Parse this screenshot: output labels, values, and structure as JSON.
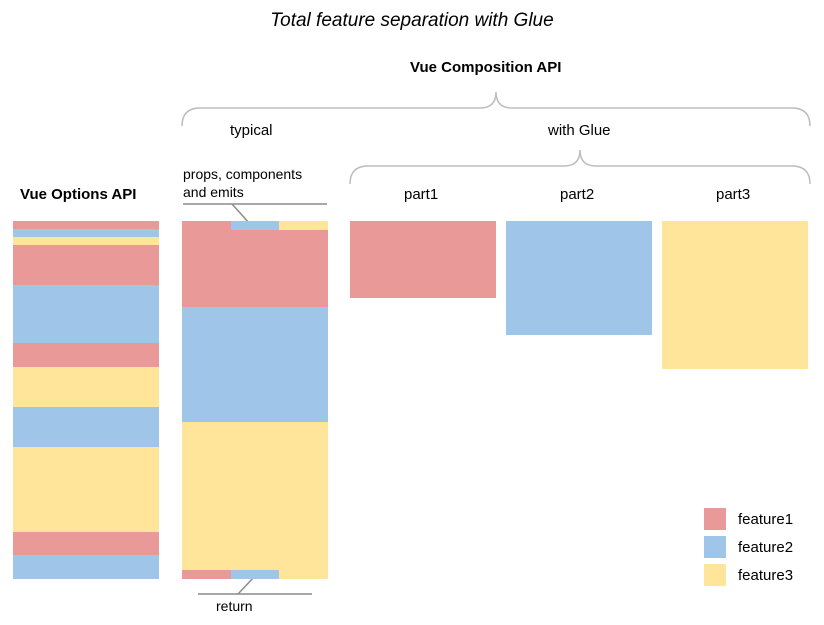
{
  "title": "Total feature separation with Glue",
  "composition_label": "Vue Composition API",
  "options_label": "Vue Options API",
  "typical_label": "typical",
  "with_glue_label": "with Glue",
  "props_label_line1": "props, components",
  "props_label_line2": "and emits",
  "return_label": "return",
  "parts": [
    "part1",
    "part2",
    "part3"
  ],
  "legend": [
    {
      "label": "feature1",
      "color": "#ea9999"
    },
    {
      "label": "feature2",
      "color": "#9fc5e8"
    },
    {
      "label": "feature3",
      "color": "#ffe599"
    }
  ]
}
